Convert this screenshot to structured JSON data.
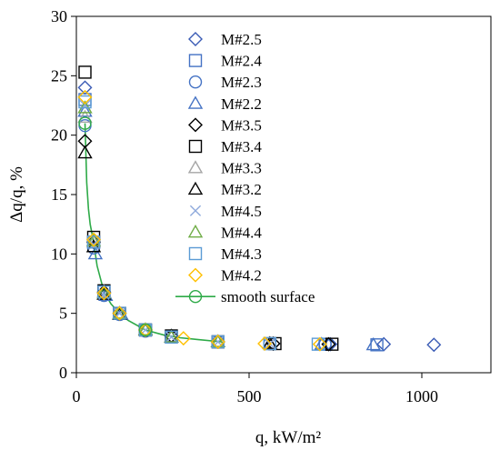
{
  "chart_data": {
    "type": "scatter",
    "xlabel": "q, kW/m²",
    "ylabel": "Δq/q, %",
    "xlim": [
      0,
      1200
    ],
    "ylim": [
      0,
      30
    ],
    "xticks": [
      0,
      500,
      1000
    ],
    "yticks": [
      0,
      5,
      10,
      15,
      20,
      25,
      30
    ],
    "grid": false,
    "legend_position": "top-center",
    "series": [
      {
        "name": "M#2.5",
        "marker": "diamond",
        "color": "#3a5bb5",
        "x": [
          25,
          50,
          80,
          125,
          200,
          275,
          410,
          570,
          735,
          890,
          1035
        ],
        "y": [
          24.0,
          11.2,
          6.7,
          5.0,
          3.6,
          3.1,
          2.6,
          2.45,
          2.4,
          2.4,
          2.35
        ]
      },
      {
        "name": "M#2.4",
        "marker": "square",
        "color": "#4472c4",
        "x": [
          25,
          50,
          80,
          125,
          200,
          275,
          410,
          560,
          720,
          870
        ],
        "y": [
          23.0,
          11.0,
          6.8,
          5.0,
          3.6,
          3.0,
          2.6,
          2.45,
          2.4,
          2.35
        ]
      },
      {
        "name": "M#2.3",
        "marker": "circle",
        "color": "#4472c4",
        "x": [
          25,
          50,
          80,
          125,
          200,
          275,
          410,
          560,
          720
        ],
        "y": [
          20.8,
          10.5,
          6.5,
          4.9,
          3.5,
          3.0,
          2.6,
          2.45,
          2.4
        ]
      },
      {
        "name": "M#2.2",
        "marker": "triangle",
        "color": "#4472c4",
        "x": [
          25,
          55,
          85,
          130,
          200,
          275,
          410,
          560,
          710,
          860
        ],
        "y": [
          22.0,
          10.0,
          6.5,
          4.9,
          3.6,
          3.0,
          2.6,
          2.45,
          2.4,
          2.35
        ]
      },
      {
        "name": "M#3.5",
        "marker": "diamond",
        "color": "#000000",
        "x": [
          25,
          50,
          80,
          125,
          200,
          275,
          410,
          570,
          730
        ],
        "y": [
          19.5,
          11.0,
          6.8,
          5.0,
          3.6,
          3.1,
          2.6,
          2.45,
          2.4
        ]
      },
      {
        "name": "M#3.4",
        "marker": "square",
        "color": "#000000",
        "x": [
          25,
          50,
          80,
          125,
          200,
          275,
          410,
          575,
          740
        ],
        "y": [
          25.3,
          11.4,
          6.9,
          5.0,
          3.6,
          3.1,
          2.6,
          2.45,
          2.4
        ]
      },
      {
        "name": "M#3.3",
        "marker": "triangle",
        "color": "#a6a6a6",
        "x": [
          25,
          50,
          80,
          125,
          200,
          275,
          410,
          560
        ],
        "y": [
          21.5,
          11.0,
          6.8,
          5.0,
          3.6,
          3.0,
          2.6,
          2.45
        ]
      },
      {
        "name": "M#3.2",
        "marker": "triangle",
        "color": "#000000",
        "x": [
          25,
          50,
          80,
          125,
          200,
          275,
          410,
          560
        ],
        "y": [
          18.5,
          10.6,
          6.6,
          4.9,
          3.6,
          3.0,
          2.6,
          2.45
        ]
      },
      {
        "name": "M#4.5",
        "marker": "x",
        "color": "#8faadc",
        "x": [
          25,
          50,
          80,
          125,
          200,
          275,
          410,
          560
        ],
        "y": [
          22.5,
          10.8,
          6.6,
          5.0,
          3.6,
          3.0,
          2.6,
          2.45
        ]
      },
      {
        "name": "M#4.4",
        "marker": "triangle",
        "color": "#70ad47",
        "x": [
          25,
          50,
          80,
          125,
          200,
          275,
          410
        ],
        "y": [
          22.3,
          11.1,
          6.7,
          5.0,
          3.6,
          3.0,
          2.6
        ]
      },
      {
        "name": "M#4.3",
        "marker": "square",
        "color": "#5b9bd5",
        "x": [
          25,
          50,
          80,
          125,
          200,
          275,
          410,
          560,
          700
        ],
        "y": [
          22.8,
          11.0,
          6.8,
          5.0,
          3.6,
          3.0,
          2.6,
          2.45,
          2.4
        ]
      },
      {
        "name": "M#4.2",
        "marker": "diamond",
        "color": "#ffc000",
        "x": [
          25,
          50,
          80,
          125,
          200,
          310,
          410,
          545,
          705
        ],
        "y": [
          23.2,
          11.2,
          6.7,
          5.0,
          3.6,
          2.9,
          2.6,
          2.45,
          2.4
        ]
      },
      {
        "name": "smooth surface",
        "marker": "circle-line",
        "color": "#2eaa48",
        "x": [
          25,
          30,
          35,
          40,
          50,
          60,
          80,
          100,
          125,
          150,
          200,
          250,
          300,
          350,
          420
        ],
        "y": [
          21.0,
          16.0,
          13.8,
          12.5,
          11.0,
          9.0,
          6.8,
          5.8,
          5.0,
          4.4,
          3.6,
          3.2,
          2.95,
          2.8,
          2.6
        ],
        "marker_x": [
          25,
          200
        ],
        "marker_y": [
          21.0,
          3.6
        ]
      }
    ]
  }
}
